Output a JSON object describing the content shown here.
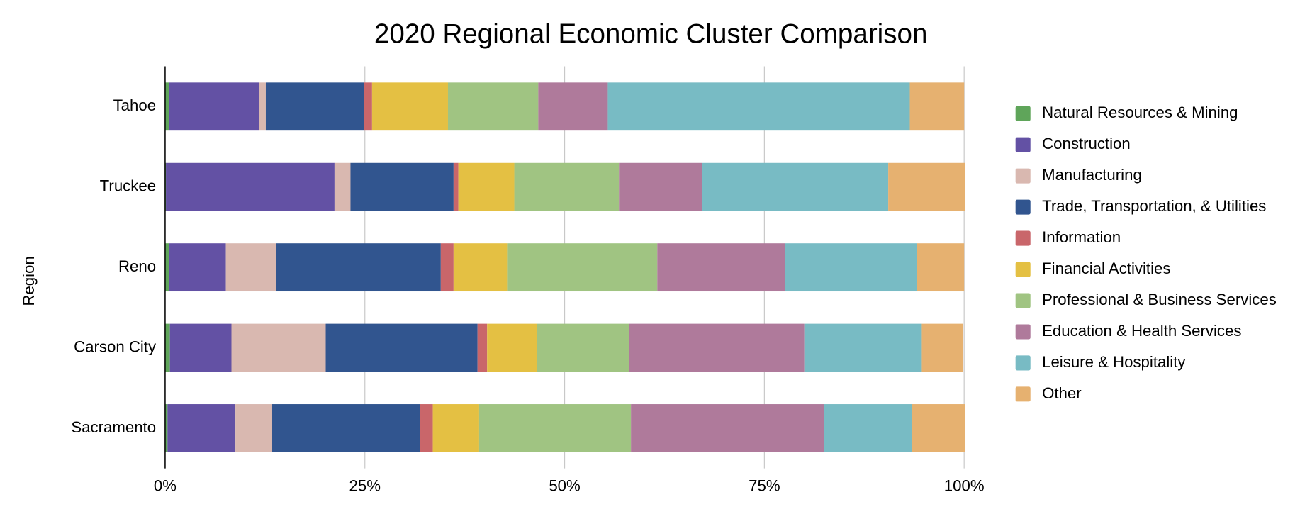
{
  "chart_data": {
    "type": "stacked_bar_horizontal",
    "title": "2020 Regional Economic Cluster Comparison",
    "y_label": "Region",
    "categories": [
      "Tahoe",
      "Truckee",
      "Reno",
      "Carson City",
      "Sacramento"
    ],
    "series": [
      {
        "name": "Natural Resources & Mining",
        "color": "#5fa55a",
        "values": [
          0.5,
          0.1,
          0.5,
          0.6,
          0.3
        ]
      },
      {
        "name": "Construction",
        "color": "#6351a4",
        "values": [
          11.3,
          21.1,
          7.1,
          7.7,
          8.5
        ]
      },
      {
        "name": "Manufacturing",
        "color": "#d9b8b0",
        "values": [
          0.8,
          2.0,
          6.3,
          11.8,
          4.6
        ]
      },
      {
        "name": "Trade, Transportation, & Utilities",
        "color": "#31558f",
        "values": [
          12.3,
          12.9,
          20.6,
          19.0,
          18.5
        ]
      },
      {
        "name": "Information",
        "color": "#c9666a",
        "values": [
          1.0,
          0.6,
          1.6,
          1.2,
          1.6
        ]
      },
      {
        "name": "Financial Activities",
        "color": "#e4c043",
        "values": [
          9.5,
          7.0,
          6.7,
          6.2,
          5.8
        ]
      },
      {
        "name": "Professional & Business Services",
        "color": "#a0c482",
        "values": [
          11.3,
          13.1,
          18.8,
          11.6,
          19.0
        ]
      },
      {
        "name": "Education & Health Services",
        "color": "#af7a9b",
        "values": [
          8.7,
          10.4,
          16.0,
          21.9,
          24.2
        ]
      },
      {
        "name": "Leisure & Hospitality",
        "color": "#78bbc4",
        "values": [
          37.8,
          23.3,
          16.5,
          14.7,
          11.0
        ]
      },
      {
        "name": "Other",
        "color": "#e6b170",
        "values": [
          6.8,
          9.6,
          5.9,
          5.2,
          6.6
        ]
      }
    ],
    "xlim": [
      0,
      100
    ],
    "xticks": [
      {
        "value": 0,
        "label": "0%"
      },
      {
        "value": 25,
        "label": "25%"
      },
      {
        "value": 50,
        "label": "50%"
      },
      {
        "value": 75,
        "label": "75%"
      },
      {
        "value": 100,
        "label": "100%"
      }
    ],
    "grid": true,
    "legend": "right"
  }
}
